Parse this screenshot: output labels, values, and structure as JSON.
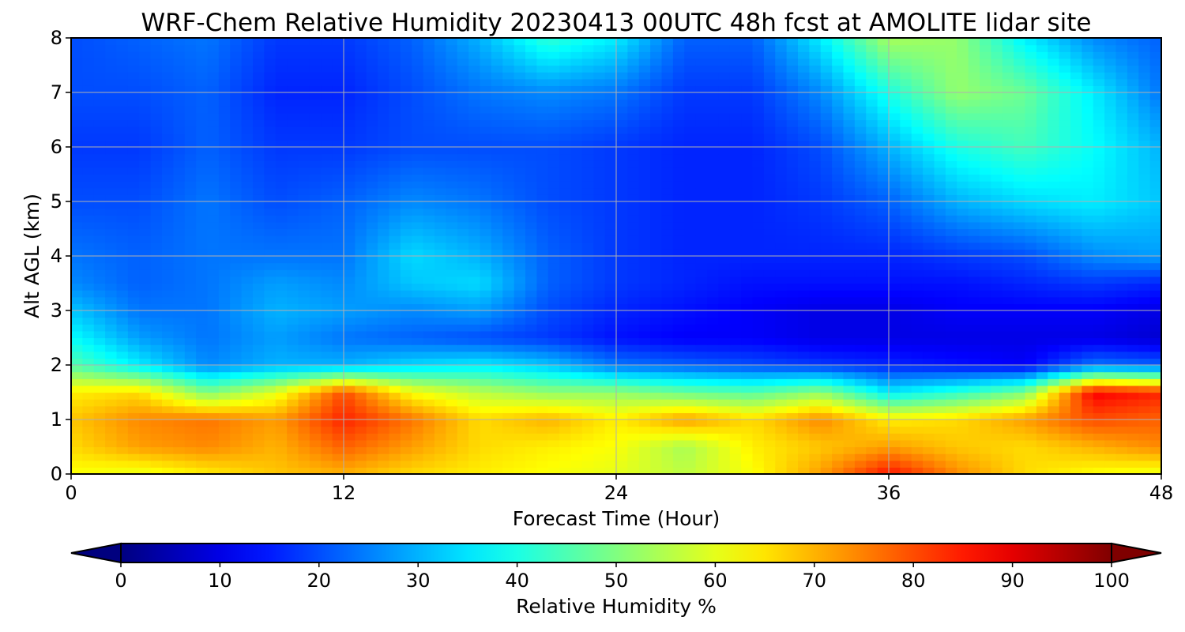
{
  "chart_data": {
    "type": "heatmap",
    "title": "WRF-Chem Relative Humidity 20230413 00UTC 48h fcst at AMOLITE lidar site",
    "xlabel": "Forecast Time (Hour)",
    "ylabel": "Alt AGL (km)",
    "xlim": [
      0,
      48
    ],
    "ylim": [
      0,
      8
    ],
    "x_ticks": [
      "0",
      "12",
      "24",
      "36",
      "48"
    ],
    "y_ticks": [
      "0",
      "1",
      "2",
      "3",
      "4",
      "5",
      "6",
      "7",
      "8"
    ],
    "grid": true,
    "colormap": "jet",
    "colorbar": {
      "label": "Relative Humidity %",
      "range": [
        0,
        100
      ],
      "ticks": [
        "0",
        "10",
        "20",
        "30",
        "40",
        "50",
        "60",
        "70",
        "80",
        "90",
        "100"
      ],
      "extend": "both",
      "placement": "bottom"
    },
    "x": [
      0,
      3,
      6,
      9,
      12,
      15,
      18,
      21,
      24,
      27,
      30,
      33,
      36,
      39,
      42,
      45,
      48
    ],
    "y": [
      0,
      0.5,
      1,
      1.5,
      2,
      2.5,
      3,
      3.5,
      4,
      5,
      6,
      7,
      8
    ],
    "z": [
      [
        62,
        60,
        64,
        68,
        70,
        66,
        64,
        62,
        60,
        56,
        62,
        72,
        86,
        74,
        66,
        62,
        60
      ],
      [
        66,
        72,
        74,
        70,
        78,
        72,
        66,
        64,
        62,
        54,
        64,
        68,
        72,
        68,
        66,
        70,
        74
      ],
      [
        68,
        74,
        76,
        72,
        84,
        76,
        66,
        70,
        64,
        72,
        66,
        74,
        64,
        66,
        72,
        80,
        78
      ],
      [
        64,
        66,
        50,
        60,
        80,
        62,
        56,
        52,
        52,
        48,
        46,
        52,
        36,
        42,
        50,
        88,
        84
      ],
      [
        46,
        36,
        26,
        30,
        30,
        34,
        36,
        32,
        24,
        22,
        20,
        18,
        16,
        14,
        12,
        24,
        22
      ],
      [
        38,
        28,
        24,
        28,
        24,
        22,
        20,
        18,
        14,
        12,
        12,
        10,
        10,
        10,
        10,
        10,
        8
      ],
      [
        32,
        24,
        24,
        30,
        28,
        26,
        28,
        20,
        16,
        14,
        12,
        10,
        10,
        12,
        12,
        12,
        10
      ],
      [
        26,
        22,
        24,
        28,
        26,
        32,
        34,
        22,
        18,
        16,
        14,
        14,
        14,
        14,
        16,
        18,
        16
      ],
      [
        24,
        22,
        24,
        24,
        24,
        34,
        30,
        22,
        18,
        16,
        16,
        16,
        16,
        18,
        20,
        26,
        28
      ],
      [
        20,
        20,
        24,
        20,
        22,
        26,
        24,
        20,
        18,
        16,
        16,
        18,
        22,
        30,
        34,
        36,
        32
      ],
      [
        18,
        18,
        22,
        18,
        18,
        20,
        20,
        20,
        18,
        16,
        16,
        20,
        30,
        40,
        44,
        38,
        30
      ],
      [
        20,
        20,
        22,
        16,
        16,
        20,
        24,
        26,
        24,
        18,
        18,
        26,
        40,
        52,
        48,
        36,
        24
      ],
      [
        20,
        22,
        24,
        18,
        18,
        22,
        30,
        42,
        36,
        22,
        22,
        36,
        54,
        52,
        36,
        26,
        22
      ]
    ]
  }
}
